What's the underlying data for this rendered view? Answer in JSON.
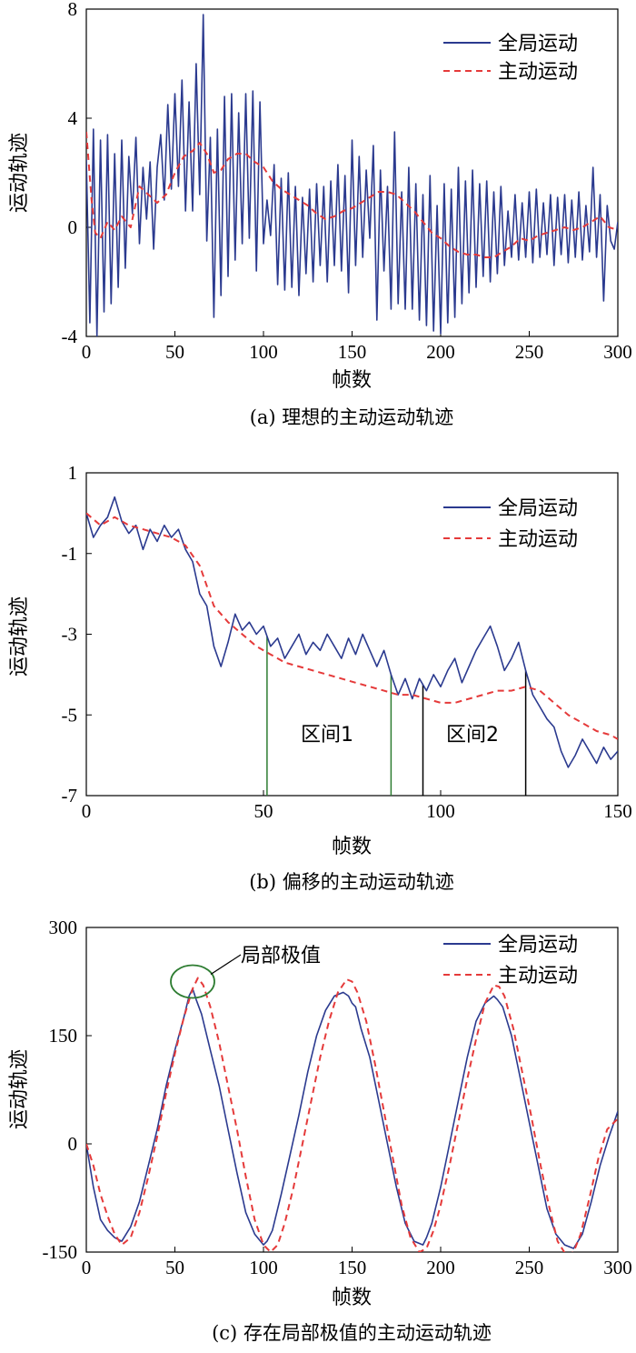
{
  "chart_data": [
    {
      "type": "line",
      "caption": "(a) 理想的主动运动轨迹",
      "xlabel": "帧数",
      "ylabel": "运动轨迹",
      "xlim": [
        0,
        300
      ],
      "ylim": [
        -4,
        8
      ],
      "xticks": [
        "0",
        "50",
        "100",
        "150",
        "200",
        "250",
        "300"
      ],
      "yticks": [
        "-4",
        "0",
        "4",
        "8"
      ],
      "xtick_values": [
        0,
        50,
        100,
        150,
        200,
        250,
        300
      ],
      "ytick_values": [
        -4,
        0,
        4,
        8
      ],
      "legend_position": "top-right",
      "colors": {
        "global": "#2b3a8f",
        "active": "#e53a3a"
      },
      "series": [
        {
          "name": "全局运动",
          "style": "solid",
          "x": [
            0,
            2,
            4,
            6,
            8,
            10,
            12,
            14,
            16,
            18,
            20,
            22,
            24,
            26,
            28,
            30,
            32,
            34,
            36,
            38,
            40,
            42,
            44,
            46,
            48,
            50,
            52,
            54,
            56,
            58,
            60,
            62,
            64,
            66,
            68,
            70,
            72,
            74,
            76,
            78,
            80,
            82,
            84,
            86,
            88,
            90,
            92,
            94,
            96,
            98,
            100,
            102,
            104,
            106,
            108,
            110,
            112,
            114,
            116,
            118,
            120,
            122,
            124,
            126,
            128,
            130,
            132,
            134,
            136,
            138,
            140,
            142,
            144,
            146,
            148,
            150,
            152,
            154,
            156,
            158,
            160,
            162,
            164,
            166,
            168,
            170,
            172,
            174,
            176,
            178,
            180,
            182,
            184,
            186,
            188,
            190,
            192,
            194,
            196,
            198,
            200,
            202,
            204,
            206,
            208,
            210,
            212,
            214,
            216,
            218,
            220,
            222,
            224,
            226,
            228,
            230,
            232,
            234,
            236,
            238,
            240,
            242,
            244,
            246,
            248,
            250,
            252,
            254,
            256,
            258,
            260,
            262,
            264,
            266,
            268,
            270,
            272,
            274,
            276,
            278,
            280,
            282,
            284,
            286,
            288,
            290,
            292,
            294,
            296,
            298,
            300
          ],
          "y": [
            2.5,
            -3.5,
            3.6,
            -4,
            3.2,
            -3.1,
            3.4,
            -2.8,
            2.7,
            -2.2,
            3.2,
            -1.5,
            2.6,
            0.5,
            3.3,
            -0.6,
            2.2,
            0.3,
            2.4,
            -0.8,
            2.2,
            3.4,
            1.0,
            4.5,
            1.4,
            4.9,
            1.5,
            5.4,
            0.6,
            4.6,
            0.6,
            6.0,
            1.2,
            7.8,
            -0.5,
            3.3,
            -3.3,
            3.6,
            -2.5,
            4.8,
            -1.8,
            4.9,
            -1.2,
            4.2,
            -0.6,
            4.9,
            -0.4,
            5.0,
            -1.6,
            4.6,
            -0.6,
            1.0,
            -0.3,
            2.3,
            -2.1,
            1.8,
            -2.3,
            2.0,
            -2.2,
            1.5,
            -2.5,
            1.1,
            -1.7,
            1.4,
            -2.0,
            1.6,
            -1.4,
            1.5,
            -2.0,
            1.7,
            -1.4,
            2.3,
            -1.6,
            1.9,
            -2.4,
            3.2,
            -1.4,
            2.6,
            -1.1,
            2.1,
            -0.4,
            3.0,
            -3.4,
            2.1,
            -1.6,
            1.5,
            -3.0,
            3.5,
            -2.8,
            1.3,
            -3.0,
            2.2,
            -3.0,
            1.6,
            -3.4,
            1.2,
            -3.6,
            1.9,
            -3.8,
            0.8,
            -3.9,
            1.6,
            -3.5,
            1.4,
            -3.3,
            2.2,
            -2.8,
            1.7,
            -2.4,
            2.1,
            -2.2,
            1.6,
            -1.8,
            1.7,
            -2.0,
            1.3,
            -1.7,
            1.5,
            -1.4,
            0.6,
            -1.1,
            1.2,
            -1.2,
            0.9,
            -1.1,
            1.3,
            -1.3,
            1.4,
            -1.1,
            0.9,
            -1.0,
            1.2,
            -1.4,
            1.1,
            -1.0,
            1.2,
            -1.3,
            1.0,
            -1.1,
            1.3,
            -1.2,
            0.8,
            -0.9,
            2.2,
            -1.1,
            1.2,
            -2.7,
            0.8,
            -0.5,
            -0.8,
            0.2
          ]
        },
        {
          "name": "主动运动",
          "style": "dashed",
          "x": [
            0,
            3,
            5,
            8,
            12,
            16,
            20,
            25,
            30,
            35,
            40,
            45,
            50,
            55,
            60,
            64,
            68,
            72,
            76,
            80,
            85,
            90,
            95,
            100,
            105,
            110,
            115,
            120,
            125,
            130,
            135,
            140,
            145,
            150,
            155,
            160,
            165,
            170,
            175,
            180,
            185,
            190,
            195,
            200,
            205,
            210,
            215,
            220,
            225,
            230,
            235,
            240,
            245,
            250,
            255,
            260,
            265,
            270,
            275,
            280,
            285,
            290,
            295,
            300
          ],
          "y": [
            3.5,
            1.0,
            -0.2,
            -0.4,
            0.2,
            -0.1,
            0.4,
            0.0,
            1.5,
            1.2,
            0.9,
            1.2,
            2.0,
            2.6,
            2.8,
            3.1,
            2.7,
            2.0,
            2.1,
            2.5,
            2.7,
            2.7,
            2.4,
            2.2,
            1.7,
            1.4,
            1.2,
            1.0,
            0.8,
            0.5,
            0.3,
            0.4,
            0.6,
            0.7,
            0.9,
            1.1,
            1.3,
            1.3,
            1.2,
            0.9,
            0.6,
            0.2,
            -0.2,
            -0.4,
            -0.7,
            -0.9,
            -1.0,
            -1.0,
            -1.1,
            -1.1,
            -0.9,
            -0.7,
            -0.4,
            -0.5,
            -0.3,
            -0.2,
            -0.1,
            0.0,
            -0.1,
            0.0,
            0.2,
            0.4,
            0.0,
            -0.1
          ]
        }
      ]
    },
    {
      "type": "line",
      "caption": "(b) 偏移的主动运动轨迹",
      "xlabel": "帧数",
      "ylabel": "运动轨迹",
      "xlim": [
        0,
        150
      ],
      "ylim": [
        -7,
        1
      ],
      "xticks": [
        "0",
        "50",
        "100",
        "150"
      ],
      "yticks": [
        "-7",
        "-5",
        "-3",
        "-1",
        "1"
      ],
      "xtick_values": [
        0,
        50,
        100,
        150
      ],
      "ytick_values": [
        -7,
        -5,
        -3,
        -1,
        1
      ],
      "legend_position": "top-right",
      "annotations": [
        {
          "text": "区间1",
          "from": 51,
          "to": 86,
          "color": "#2e7d32"
        },
        {
          "text": "区间2",
          "from": 95,
          "to": 124,
          "color": "#000000"
        }
      ],
      "series": [
        {
          "name": "全局运动",
          "style": "solid",
          "x": [
            0,
            2,
            4,
            6,
            8,
            10,
            12,
            14,
            16,
            18,
            20,
            22,
            24,
            26,
            28,
            30,
            32,
            34,
            36,
            38,
            40,
            42,
            44,
            46,
            48,
            50,
            52,
            54,
            56,
            58,
            60,
            62,
            64,
            66,
            68,
            70,
            72,
            74,
            76,
            78,
            80,
            82,
            84,
            86,
            88,
            90,
            92,
            94,
            96,
            98,
            100,
            102,
            104,
            106,
            108,
            110,
            112,
            114,
            116,
            118,
            120,
            122,
            124,
            126,
            128,
            130,
            132,
            134,
            136,
            138,
            140,
            142,
            144,
            146,
            148,
            150
          ],
          "y": [
            0,
            -0.6,
            -0.3,
            -0.1,
            0.4,
            -0.2,
            -0.5,
            -0.3,
            -0.9,
            -0.4,
            -0.7,
            -0.3,
            -0.6,
            -0.4,
            -0.9,
            -1.2,
            -2.0,
            -2.3,
            -3.3,
            -3.8,
            -3.2,
            -2.5,
            -2.9,
            -2.7,
            -3.0,
            -2.8,
            -3.3,
            -3.1,
            -3.6,
            -3.3,
            -3.0,
            -3.5,
            -3.2,
            -3.4,
            -3.0,
            -3.3,
            -3.6,
            -3.1,
            -3.5,
            -3.0,
            -3.4,
            -3.8,
            -3.4,
            -4.0,
            -4.5,
            -4.1,
            -4.6,
            -4.1,
            -4.4,
            -4.0,
            -4.3,
            -3.9,
            -3.6,
            -4.2,
            -3.8,
            -3.4,
            -3.1,
            -2.8,
            -3.3,
            -3.9,
            -3.6,
            -3.2,
            -3.9,
            -4.5,
            -4.8,
            -5.1,
            -5.3,
            -5.9,
            -6.3,
            -6.0,
            -5.6,
            -5.9,
            -6.2,
            -5.8,
            -6.1,
            -5.9
          ]
        },
        {
          "name": "主动运动",
          "style": "dashed",
          "x": [
            0,
            4,
            8,
            12,
            16,
            20,
            24,
            28,
            32,
            36,
            40,
            44,
            48,
            52,
            56,
            60,
            64,
            68,
            72,
            76,
            80,
            84,
            88,
            92,
            96,
            100,
            104,
            108,
            112,
            116,
            120,
            124,
            128,
            132,
            136,
            140,
            144,
            148,
            150
          ],
          "y": [
            0,
            -0.3,
            -0.1,
            -0.3,
            -0.4,
            -0.5,
            -0.6,
            -0.8,
            -1.3,
            -2.3,
            -2.7,
            -3.0,
            -3.3,
            -3.5,
            -3.7,
            -3.8,
            -3.9,
            -4.0,
            -4.1,
            -4.2,
            -4.3,
            -4.4,
            -4.5,
            -4.5,
            -4.6,
            -4.7,
            -4.7,
            -4.6,
            -4.5,
            -4.4,
            -4.4,
            -4.3,
            -4.4,
            -4.7,
            -5.0,
            -5.2,
            -5.4,
            -5.5,
            -5.6
          ]
        }
      ]
    },
    {
      "type": "line",
      "caption": "(c) 存在局部极值的主动运动轨迹",
      "xlabel": "帧数",
      "ylabel": "运动轨迹",
      "xlim": [
        0,
        300
      ],
      "ylim": [
        -150,
        300
      ],
      "xticks": [
        "0",
        "50",
        "100",
        "150",
        "200",
        "250",
        "300"
      ],
      "yticks": [
        "-150",
        "0",
        "150",
        "300"
      ],
      "xtick_values": [
        0,
        50,
        100,
        150,
        200,
        250,
        300
      ],
      "ytick_values": [
        -150,
        0,
        150,
        300
      ],
      "legend_position": "top-right",
      "annotation": {
        "text": "局部极值",
        "x": 60,
        "y": 225
      },
      "series": [
        {
          "name": "全局运动",
          "style": "solid",
          "x": [
            0,
            4,
            8,
            12,
            16,
            20,
            25,
            30,
            35,
            40,
            45,
            50,
            55,
            58,
            60,
            62,
            65,
            70,
            75,
            80,
            85,
            90,
            95,
            100,
            102,
            105,
            110,
            115,
            120,
            125,
            130,
            135,
            140,
            145,
            148,
            150,
            152,
            155,
            160,
            165,
            170,
            175,
            180,
            185,
            190,
            192,
            195,
            200,
            205,
            210,
            215,
            220,
            225,
            230,
            232,
            235,
            240,
            245,
            250,
            255,
            260,
            265,
            270,
            275,
            280,
            285,
            290,
            295,
            300
          ],
          "y": [
            0,
            -60,
            -105,
            -120,
            -130,
            -135,
            -115,
            -80,
            -30,
            20,
            80,
            130,
            175,
            205,
            215,
            200,
            180,
            130,
            80,
            20,
            -40,
            -95,
            -125,
            -140,
            -135,
            -120,
            -70,
            -15,
            40,
            100,
            150,
            185,
            205,
            210,
            205,
            195,
            190,
            160,
            120,
            60,
            0,
            -60,
            -110,
            -135,
            -140,
            -130,
            -110,
            -60,
            0,
            60,
            120,
            170,
            195,
            205,
            200,
            190,
            150,
            90,
            30,
            -30,
            -90,
            -125,
            -140,
            -145,
            -125,
            -80,
            -30,
            10,
            45
          ]
        },
        {
          "name": "主动运动",
          "style": "dashed",
          "x": [
            0,
            4,
            8,
            12,
            16,
            20,
            25,
            30,
            35,
            40,
            45,
            50,
            55,
            60,
            63,
            66,
            70,
            75,
            80,
            85,
            90,
            95,
            100,
            104,
            108,
            112,
            117,
            122,
            127,
            132,
            137,
            142,
            147,
            150,
            153,
            158,
            163,
            168,
            173,
            178,
            183,
            188,
            192,
            196,
            200,
            205,
            210,
            215,
            220,
            225,
            230,
            233,
            236,
            241,
            246,
            251,
            256,
            261,
            266,
            271,
            275,
            279,
            284,
            289,
            294,
            300
          ],
          "y": [
            0,
            -30,
            -70,
            -100,
            -125,
            -140,
            -130,
            -95,
            -45,
            10,
            70,
            125,
            175,
            215,
            230,
            220,
            190,
            140,
            80,
            20,
            -45,
            -105,
            -140,
            -150,
            -140,
            -110,
            -60,
            0,
            60,
            120,
            170,
            210,
            228,
            225,
            210,
            170,
            110,
            45,
            -20,
            -85,
            -130,
            -150,
            -145,
            -120,
            -85,
            -30,
            30,
            90,
            145,
            195,
            220,
            218,
            205,
            160,
            100,
            40,
            -25,
            -85,
            -135,
            -155,
            -150,
            -125,
            -75,
            -20,
            20,
            35
          ]
        }
      ]
    }
  ]
}
